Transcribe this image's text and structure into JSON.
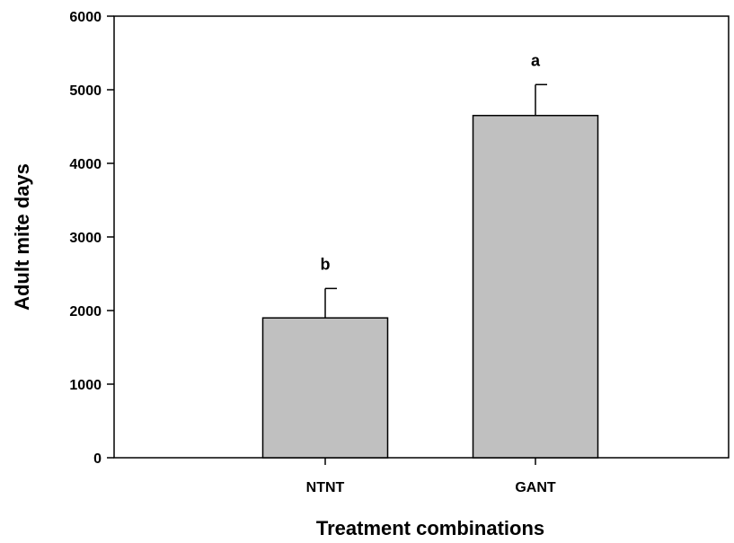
{
  "chart_data": {
    "type": "bar",
    "title": "",
    "xlabel": "Treatment combinations",
    "ylabel": "Adult mite days",
    "categories": [
      "NTNT",
      "GANT"
    ],
    "values": [
      1900,
      4650
    ],
    "errors": [
      400,
      420
    ],
    "significance_letters": [
      "b",
      "a"
    ],
    "ylim": [
      0,
      6000
    ],
    "yticks": [
      0,
      1000,
      2000,
      3000,
      4000,
      5000,
      6000
    ],
    "yticklabels": [
      "0",
      "1000",
      "2000",
      "3000",
      "4000",
      "5000",
      "6000"
    ],
    "grid": false,
    "bar_color": "#c0c0c0",
    "bar_edge_color": "#000000"
  }
}
